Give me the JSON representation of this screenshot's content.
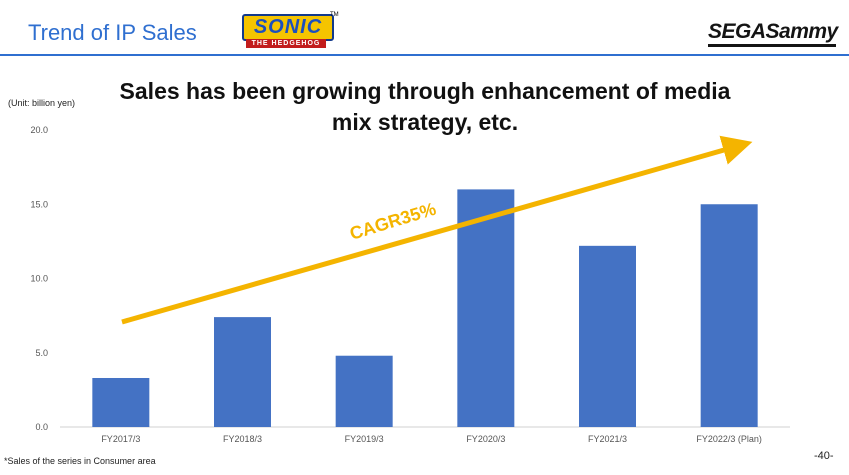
{
  "header": {
    "title": "Trend of IP Sales",
    "sonic_logo": {
      "word": "SONIC",
      "sub": "THE HEDGEHOG",
      "tm": "TM"
    },
    "company_logo": "SEGASammy"
  },
  "headline": "Sales has been growing through enhancement of media mix strategy, etc.",
  "unit_label": "(Unit: billion yen)",
  "footnote": "*Sales of the series in Consumer area",
  "page_number": "-40-",
  "colors": {
    "accent": "#2f6fd0",
    "bar": "#4472c4",
    "arrow": "#f4b400"
  },
  "chart_data": {
    "type": "bar",
    "categories": [
      "FY2017/3",
      "FY2018/3",
      "FY2019/3",
      "FY2020/3",
      "FY2021/3",
      "FY2022/3 (Plan)"
    ],
    "values": [
      3.3,
      7.4,
      4.8,
      16.0,
      12.2,
      15.0
    ],
    "ylim": [
      0,
      20
    ],
    "yticks": [
      "0.0",
      "5.0",
      "10.0",
      "15.0",
      "20.0"
    ],
    "grid": false,
    "annotation": "CAGR35%"
  }
}
